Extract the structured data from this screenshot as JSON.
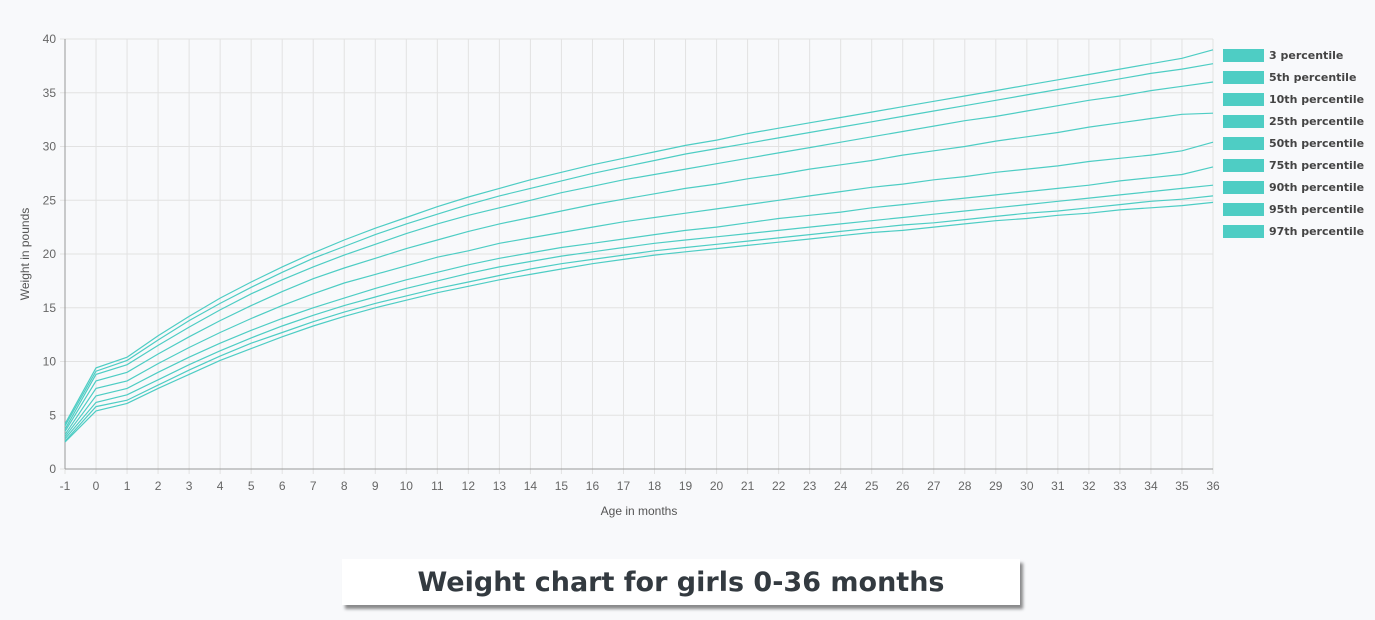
{
  "caption": "Weight chart for girls 0-36 months",
  "colors": {
    "line": "#4ecdc4",
    "legend_box": "#4ecdc4",
    "grid": "#e2e2e2",
    "axis": "#999999"
  },
  "chart_data": {
    "type": "line",
    "title": "",
    "xlabel": "Age in months",
    "ylabel": "Weight in pounds",
    "xlim": [
      -1,
      36
    ],
    "ylim": [
      0,
      40
    ],
    "x_ticks": [
      "-1",
      "0",
      "1",
      "2",
      "3",
      "4",
      "5",
      "6",
      "7",
      "8",
      "9",
      "10",
      "11",
      "12",
      "13",
      "14",
      "15",
      "16",
      "17",
      "18",
      "19",
      "20",
      "21",
      "22",
      "23",
      "24",
      "25",
      "26",
      "27",
      "28",
      "29",
      "30",
      "31",
      "32",
      "33",
      "34",
      "35",
      "36"
    ],
    "y_ticks": [
      "0",
      "5",
      "10",
      "15",
      "20",
      "25",
      "30",
      "35",
      "40"
    ],
    "grid": true,
    "legend_position": "right",
    "x": [
      -1,
      0,
      1,
      2,
      3,
      4,
      5,
      6,
      7,
      8,
      9,
      10,
      11,
      12,
      13,
      14,
      15,
      16,
      17,
      18,
      19,
      20,
      21,
      22,
      23,
      24,
      25,
      26,
      27,
      28,
      29,
      30,
      31,
      32,
      33,
      34,
      35,
      36
    ],
    "series": [
      {
        "name": "3 percentile",
        "values": [
          4.2,
          9.4,
          10.4,
          12.4,
          14.2,
          15.9,
          17.4,
          18.8,
          20.1,
          21.3,
          22.4,
          23.4,
          24.4,
          25.3,
          26.1,
          26.9,
          27.6,
          28.3,
          28.9,
          29.5,
          30.1,
          30.6,
          31.2,
          31.7,
          32.2,
          32.7,
          33.2,
          33.7,
          34.2,
          34.7,
          35.2,
          35.7,
          36.2,
          36.7,
          37.2,
          37.7,
          38.2,
          39.0
        ]
      },
      {
        "name": "5th percentile",
        "values": [
          4.0,
          9.1,
          10.1,
          12.0,
          13.8,
          15.4,
          16.9,
          18.3,
          19.6,
          20.7,
          21.8,
          22.8,
          23.7,
          24.6,
          25.4,
          26.1,
          26.8,
          27.5,
          28.1,
          28.7,
          29.3,
          29.8,
          30.3,
          30.8,
          31.3,
          31.8,
          32.3,
          32.8,
          33.3,
          33.8,
          34.3,
          34.8,
          35.3,
          35.8,
          36.3,
          36.8,
          37.2,
          37.7
        ]
      },
      {
        "name": "10th percentile",
        "values": [
          3.7,
          8.8,
          9.7,
          11.5,
          13.2,
          14.8,
          16.3,
          17.6,
          18.8,
          19.9,
          20.9,
          21.9,
          22.8,
          23.6,
          24.3,
          25.0,
          25.7,
          26.3,
          26.9,
          27.4,
          27.9,
          28.4,
          28.9,
          29.4,
          29.9,
          30.4,
          30.9,
          31.4,
          31.9,
          32.4,
          32.8,
          33.3,
          33.8,
          34.3,
          34.7,
          35.2,
          35.6,
          36.0
        ]
      },
      {
        "name": "25th percentile",
        "values": [
          3.5,
          8.2,
          9.0,
          10.7,
          12.3,
          13.8,
          15.2,
          16.5,
          17.7,
          18.7,
          19.6,
          20.5,
          21.3,
          22.1,
          22.8,
          23.4,
          24.0,
          24.6,
          25.1,
          25.6,
          26.1,
          26.5,
          27.0,
          27.4,
          27.9,
          28.3,
          28.7,
          29.2,
          29.6,
          30.0,
          30.5,
          30.9,
          31.3,
          31.8,
          32.2,
          32.6,
          33.0,
          33.1
        ]
      },
      {
        "name": "50th percentile",
        "values": [
          3.2,
          7.5,
          8.2,
          9.8,
          11.3,
          12.7,
          14.0,
          15.2,
          16.3,
          17.3,
          18.1,
          18.9,
          19.7,
          20.3,
          21.0,
          21.5,
          22.0,
          22.5,
          23.0,
          23.4,
          23.8,
          24.2,
          24.6,
          25.0,
          25.4,
          25.8,
          26.2,
          26.5,
          26.9,
          27.2,
          27.6,
          27.9,
          28.2,
          28.6,
          28.9,
          29.2,
          29.6,
          30.4
        ]
      },
      {
        "name": "75th percentile",
        "values": [
          3.0,
          6.8,
          7.5,
          9.0,
          10.4,
          11.7,
          12.9,
          14.0,
          15.0,
          15.9,
          16.8,
          17.6,
          18.3,
          19.0,
          19.6,
          20.1,
          20.6,
          21.0,
          21.4,
          21.8,
          22.2,
          22.5,
          22.9,
          23.3,
          23.6,
          23.9,
          24.3,
          24.6,
          24.9,
          25.2,
          25.5,
          25.8,
          26.1,
          26.4,
          26.8,
          27.1,
          27.4,
          28.1
        ]
      },
      {
        "name": "90th percentile",
        "values": [
          2.8,
          6.2,
          6.9,
          8.3,
          9.7,
          11.0,
          12.2,
          13.3,
          14.3,
          15.2,
          16.0,
          16.8,
          17.5,
          18.2,
          18.8,
          19.3,
          19.8,
          20.2,
          20.6,
          21.0,
          21.3,
          21.6,
          21.9,
          22.2,
          22.5,
          22.8,
          23.1,
          23.4,
          23.7,
          24.0,
          24.3,
          24.6,
          24.9,
          25.2,
          25.5,
          25.8,
          26.1,
          26.4
        ]
      },
      {
        "name": "95th percentile",
        "values": [
          2.6,
          5.8,
          6.4,
          7.8,
          9.2,
          10.5,
          11.7,
          12.7,
          13.7,
          14.6,
          15.4,
          16.1,
          16.8,
          17.4,
          18.0,
          18.6,
          19.1,
          19.5,
          19.9,
          20.3,
          20.6,
          20.9,
          21.2,
          21.5,
          21.8,
          22.1,
          22.4,
          22.7,
          22.9,
          23.2,
          23.5,
          23.8,
          24.0,
          24.3,
          24.6,
          24.9,
          25.1,
          25.4
        ]
      },
      {
        "name": "97th percentile",
        "values": [
          2.5,
          5.4,
          6.1,
          7.5,
          8.8,
          10.1,
          11.2,
          12.3,
          13.3,
          14.2,
          15.0,
          15.7,
          16.4,
          17.0,
          17.6,
          18.1,
          18.6,
          19.1,
          19.5,
          19.9,
          20.2,
          20.5,
          20.8,
          21.1,
          21.4,
          21.7,
          22.0,
          22.2,
          22.5,
          22.8,
          23.1,
          23.3,
          23.6,
          23.8,
          24.1,
          24.3,
          24.5,
          24.8
        ]
      }
    ]
  }
}
